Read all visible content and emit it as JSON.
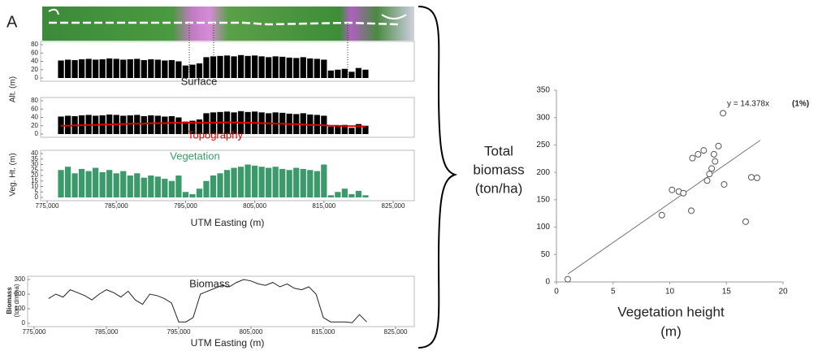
{
  "panel_label": "A",
  "side_label": [
    "Total",
    "biomass",
    "(ton/ha)"
  ],
  "chart_data": [
    {
      "type": "bar",
      "label": "Surface",
      "ylabel": "Alt. (m)",
      "color": "#000000",
      "x": [
        777000,
        778000,
        779000,
        780000,
        781000,
        782000,
        783000,
        784000,
        785000,
        786000,
        787000,
        788000,
        789000,
        790000,
        791000,
        792000,
        793000,
        794000,
        795000,
        796000,
        797000,
        798000,
        799000,
        800000,
        801000,
        802000,
        803000,
        804000,
        805000,
        806000,
        807000,
        808000,
        809000,
        810000,
        811000,
        812000,
        813000,
        814000,
        815000,
        816000,
        817000,
        818000,
        819000,
        820000,
        821000
      ],
      "values": [
        42,
        44,
        43,
        45,
        46,
        44,
        45,
        47,
        46,
        44,
        45,
        46,
        43,
        45,
        44,
        42,
        43,
        40,
        30,
        32,
        35,
        50,
        52,
        53,
        54,
        52,
        55,
        53,
        54,
        52,
        50,
        52,
        51,
        49,
        48,
        50,
        47,
        46,
        44,
        18,
        20,
        22,
        15,
        24,
        20
      ],
      "xlim": [
        775000,
        825000
      ],
      "ylim": [
        0,
        80
      ],
      "yticks": [
        0,
        20,
        40,
        60,
        80
      ]
    },
    {
      "type": "bar",
      "x": [
        777000,
        778000,
        779000,
        780000,
        781000,
        782000,
        783000,
        784000,
        785000,
        786000,
        787000,
        788000,
        789000,
        790000,
        791000,
        792000,
        793000,
        794000,
        795000,
        796000,
        797000,
        798000,
        799000,
        800000,
        801000,
        802000,
        803000,
        804000,
        805000,
        806000,
        807000,
        808000,
        809000,
        810000,
        811000,
        812000,
        813000,
        814000,
        815000,
        816000,
        817000,
        818000,
        819000,
        820000,
        821000
      ],
      "series": [
        {
          "color": "#000000",
          "values": [
            42,
            44,
            43,
            45,
            46,
            44,
            45,
            47,
            46,
            44,
            45,
            46,
            43,
            45,
            44,
            42,
            43,
            40,
            30,
            32,
            35,
            50,
            52,
            53,
            54,
            52,
            55,
            53,
            54,
            52,
            50,
            52,
            51,
            49,
            48,
            50,
            47,
            46,
            44,
            18,
            20,
            22,
            15,
            24,
            20
          ]
        },
        {
          "name": "Topography",
          "color": "#e00000",
          "style": "line",
          "values": [
            20,
            20,
            21,
            21,
            22,
            22,
            23,
            23,
            24,
            24,
            25,
            25,
            25,
            26,
            26,
            26,
            27,
            27,
            27,
            27,
            27,
            27,
            27,
            28,
            28,
            28,
            27,
            27,
            27,
            26,
            26,
            25,
            25,
            24,
            24,
            23,
            22,
            22,
            21,
            20,
            20,
            19,
            19,
            19,
            18
          ]
        }
      ],
      "xlim": [
        775000,
        825000
      ],
      "ylim": [
        0,
        80
      ],
      "yticks": [
        0,
        20,
        40,
        60,
        80
      ]
    },
    {
      "type": "bar",
      "label": "Vegetation",
      "ylabel": "Veg. Ht. (m)",
      "xlabel": "UTM Easting (m)",
      "color": "#3a9a6a",
      "x": [
        777000,
        778000,
        779000,
        780000,
        781000,
        782000,
        783000,
        784000,
        785000,
        786000,
        787000,
        788000,
        789000,
        790000,
        791000,
        792000,
        793000,
        794000,
        795000,
        796000,
        797000,
        798000,
        799000,
        800000,
        801000,
        802000,
        803000,
        804000,
        805000,
        806000,
        807000,
        808000,
        809000,
        810000,
        811000,
        812000,
        813000,
        814000,
        815000,
        816000,
        817000,
        818000,
        819000,
        820000,
        821000
      ],
      "values": [
        25,
        28,
        22,
        26,
        24,
        27,
        23,
        25,
        22,
        24,
        20,
        22,
        18,
        20,
        19,
        17,
        15,
        20,
        5,
        3,
        8,
        15,
        20,
        22,
        25,
        27,
        28,
        30,
        29,
        28,
        27,
        28,
        26,
        25,
        27,
        26,
        25,
        24,
        30,
        2,
        5,
        8,
        3,
        6,
        2
      ],
      "xlim": [
        775000,
        825000
      ],
      "ylim": [
        0,
        40
      ],
      "yticks": [
        0,
        5,
        10,
        15,
        20,
        25,
        30,
        35,
        40
      ],
      "xticks": [
        {
          "value": 775000,
          "label": "775,000"
        },
        {
          "value": 785000,
          "label": "785,000"
        },
        {
          "value": 795000,
          "label": "795,000"
        },
        {
          "value": 805000,
          "label": "805,000"
        },
        {
          "value": 815000,
          "label": "815,000"
        },
        {
          "value": 825000,
          "label": "825,000"
        }
      ]
    },
    {
      "type": "line",
      "label": "Biomass",
      "ylabel": [
        "Biomass",
        "(ton dm/ha)"
      ],
      "xlabel": "UTM Easting (m)",
      "color": "#222222",
      "x": [
        777000,
        778000,
        779000,
        780000,
        781000,
        782000,
        783000,
        784000,
        785000,
        786000,
        787000,
        788000,
        789000,
        790000,
        791000,
        792000,
        793000,
        794000,
        795000,
        796000,
        797000,
        798000,
        799000,
        800000,
        801000,
        802000,
        803000,
        804000,
        805000,
        806000,
        807000,
        808000,
        809000,
        810000,
        811000,
        812000,
        813000,
        814000,
        815000,
        816000,
        817000,
        818000,
        819000,
        820000,
        821000
      ],
      "values": [
        170,
        200,
        180,
        230,
        210,
        190,
        160,
        200,
        230,
        210,
        180,
        220,
        160,
        130,
        200,
        190,
        170,
        140,
        10,
        10,
        40,
        200,
        220,
        240,
        260,
        250,
        280,
        300,
        290,
        270,
        260,
        280,
        250,
        270,
        240,
        230,
        250,
        200,
        40,
        10,
        10,
        10,
        5,
        60,
        10
      ],
      "xlim": [
        775000,
        825000
      ],
      "ylim": [
        0,
        300
      ],
      "yticks": [
        0,
        100,
        200,
        300
      ],
      "xticks": [
        {
          "value": 775000,
          "label": "775,000"
        },
        {
          "value": 785000,
          "label": "785,000"
        },
        {
          "value": 795000,
          "label": "795,000"
        },
        {
          "value": 805000,
          "label": "805,000"
        },
        {
          "value": 815000,
          "label": "815,000"
        },
        {
          "value": 825000,
          "label": "825,000"
        }
      ]
    },
    {
      "type": "scatter",
      "xlabel": [
        "Vegetation height",
        "(m)"
      ],
      "color": "#555555",
      "x": [
        1,
        9.3,
        10.2,
        10.8,
        11.2,
        11.9,
        12,
        12.5,
        13,
        13.3,
        13.5,
        13.7,
        13.9,
        14,
        14.3,
        14.7,
        14.8,
        16.7,
        17.2,
        17.7
      ],
      "values": [
        5,
        122,
        168,
        165,
        162,
        130,
        226,
        233,
        240,
        185,
        197,
        207,
        233,
        220,
        248,
        308,
        178,
        110,
        191,
        190
      ],
      "trendline": {
        "label": "y = 14.378x",
        "note": "(1%)",
        "slope": 14.378,
        "x_range": [
          1,
          18
        ]
      },
      "xlim": [
        0,
        20
      ],
      "ylim": [
        0,
        350
      ],
      "xticks": [
        0,
        5,
        10,
        15,
        20
      ],
      "yticks": [
        0,
        50,
        100,
        150,
        200,
        250,
        300,
        350
      ]
    }
  ]
}
